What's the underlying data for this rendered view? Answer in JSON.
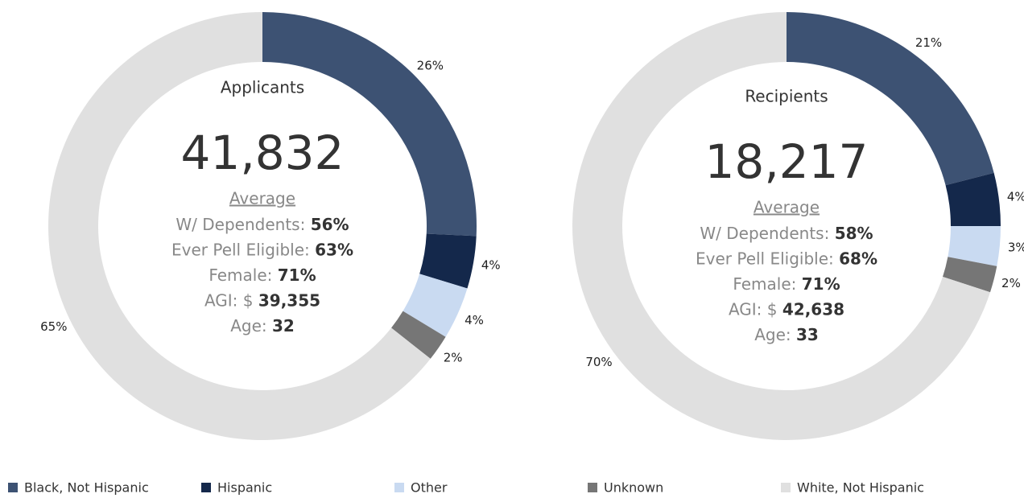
{
  "chart_data": [
    {
      "type": "donut",
      "title": "Applicants",
      "total": "41,832",
      "subtitle": "Average",
      "stats": [
        {
          "label": "W/ Dependents:",
          "value": "56%"
        },
        {
          "label": "Ever Pell Eligible:",
          "value": "63%"
        },
        {
          "label": "Female:",
          "value": "71%"
        },
        {
          "label": "AGI: $",
          "value": "39,355"
        },
        {
          "label": "Age:",
          "value": "32"
        }
      ],
      "categories": [
        "Black, Not Hispanic",
        "Hispanic",
        "Other",
        "Unknown",
        "White, Not Hispanic"
      ],
      "colors": [
        "#3d5273",
        "#14284b",
        "#c9daf1",
        "#767676",
        "#e0e0e0"
      ],
      "values": [
        26,
        4,
        4,
        2,
        65
      ],
      "value_labels": [
        "26%",
        "4%",
        "4%",
        "2%",
        "65%"
      ]
    },
    {
      "type": "donut",
      "title": "Recipients",
      "total": "18,217",
      "subtitle": "Average",
      "stats": [
        {
          "label": "W/ Dependents:",
          "value": "58%"
        },
        {
          "label": "Ever Pell Eligible:",
          "value": "68%"
        },
        {
          "label": "Female:",
          "value": "71%"
        },
        {
          "label": "AGI: $",
          "value": "42,638"
        },
        {
          "label": "Age:",
          "value": "33"
        }
      ],
      "categories": [
        "Black, Not Hispanic",
        "Hispanic",
        "Other",
        "Unknown",
        "White, Not Hispanic"
      ],
      "colors": [
        "#3d5273",
        "#14284b",
        "#c9daf1",
        "#767676",
        "#e0e0e0"
      ],
      "values": [
        21,
        4,
        3,
        2,
        70
      ],
      "value_labels": [
        "21%",
        "4%",
        "3%",
        "2%",
        "70%"
      ]
    }
  ]
}
